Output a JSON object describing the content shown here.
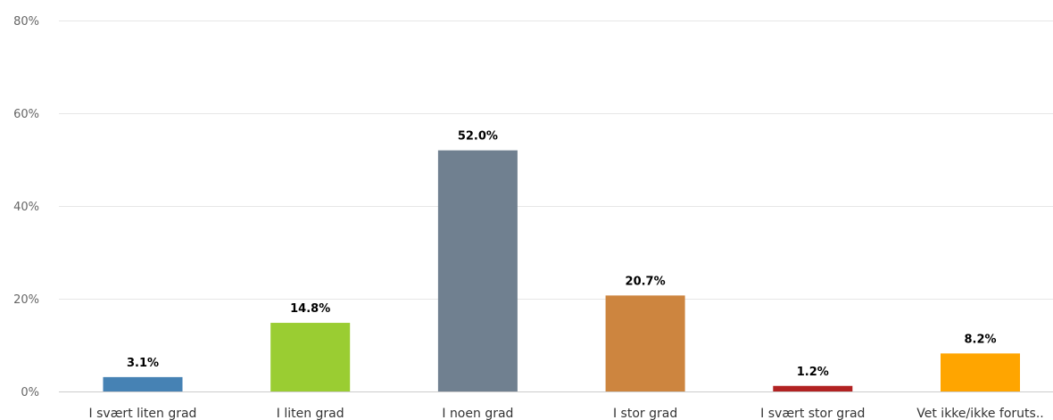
{
  "chart_data": {
    "type": "bar",
    "categories": [
      "I svært liten grad",
      "I liten grad",
      "I noen grad",
      "I stor grad",
      "I svært stor grad",
      "Vet ikke/ikke foruts.."
    ],
    "values": [
      3.1,
      14.8,
      52.0,
      20.7,
      1.2,
      8.2
    ],
    "value_labels": [
      "3.1%",
      "14.8%",
      "52.0%",
      "20.7%",
      "1.2%",
      "8.2%"
    ],
    "colors": [
      "#4682B4",
      "#9ACD32",
      "#708090",
      "#CD853F",
      "#B22222",
      "#FFA500"
    ],
    "ylim": [
      0,
      80
    ],
    "yticks": [
      0,
      20,
      40,
      60,
      80
    ],
    "ytick_labels": [
      "0%",
      "20%",
      "40%",
      "60%",
      "80%"
    ],
    "grid": true,
    "legend": "none",
    "title": "",
    "xlabel": "",
    "ylabel": ""
  }
}
